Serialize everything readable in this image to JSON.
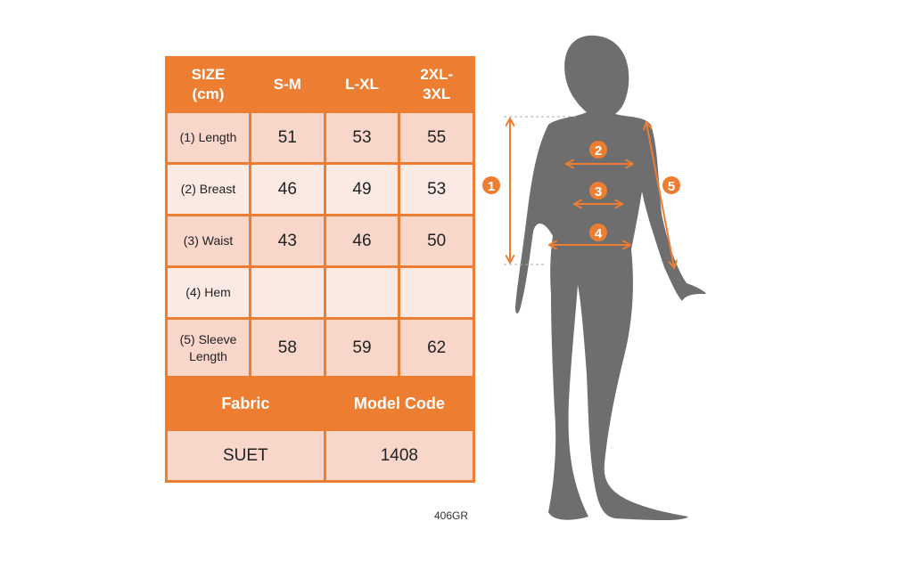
{
  "table": {
    "header": [
      "SIZE\n(cm)",
      "S-M",
      "L-XL",
      "2XL-\n3XL"
    ],
    "rows": [
      {
        "label": "(1) Length",
        "values": [
          "51",
          "53",
          "55"
        ]
      },
      {
        "label": "(2) Breast",
        "values": [
          "46",
          "49",
          "53"
        ]
      },
      {
        "label": "(3) Waist",
        "values": [
          "43",
          "46",
          "50"
        ]
      },
      {
        "label": "(4) Hem",
        "values": [
          "",
          "",
          ""
        ]
      },
      {
        "label": "(5) Sleeve Length",
        "values": [
          "58",
          "59",
          "62"
        ]
      }
    ],
    "fabric_label": "Fabric",
    "model_code_label": "Model Code",
    "fabric_value": "SUET",
    "model_code_value": "1408"
  },
  "product_code": "406GR",
  "figure": {
    "markers": [
      "1",
      "2",
      "3",
      "4",
      "5"
    ]
  },
  "colors": {
    "accent": "#ED7D31",
    "row_dark": "#F8D6CA",
    "row_light": "#FBEAE4",
    "silhouette": "#6E6E6E"
  }
}
